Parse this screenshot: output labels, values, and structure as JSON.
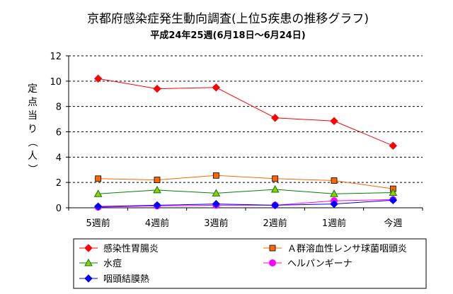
{
  "chart_data": {
    "type": "line",
    "title": "京都府感染症発生動向調査(上位5疾患の推移グラフ)",
    "subtitle": "平成24年25週(6月18日～6月24日)",
    "ylabel": "定点当り（人）",
    "xlabel": "",
    "categories": [
      "5週前",
      "4週前",
      "3週前",
      "2週前",
      "1週前",
      "今週"
    ],
    "ylim": [
      0,
      12
    ],
    "yticks": [
      "0",
      "2",
      "4",
      "6",
      "8",
      "10",
      "12"
    ],
    "grid": "horizontal-dashed",
    "legend_position": "bottom",
    "series": [
      {
        "name": "感染性胃腸炎",
        "color": "#ff0000",
        "marker": "diamond",
        "values": [
          10.2,
          9.4,
          9.5,
          7.1,
          6.85,
          4.9
        ]
      },
      {
        "name": "Ａ群溶血性レンサ球菌咽頭炎",
        "color": "#ff6600",
        "marker": "square",
        "values": [
          2.3,
          2.2,
          2.55,
          2.3,
          2.15,
          1.5
        ]
      },
      {
        "name": "水痘",
        "color": "#008000",
        "marker": "triangle",
        "values": [
          1.1,
          1.4,
          1.15,
          1.45,
          1.1,
          1.2
        ]
      },
      {
        "name": "ヘルパンギーナ",
        "color": "#ff00ff",
        "marker": "circle",
        "values": [
          0.05,
          0.15,
          0.2,
          0.2,
          0.55,
          0.65
        ]
      },
      {
        "name": "咽頭結膜熱",
        "color": "#0000ff",
        "marker": "diamond",
        "values": [
          0.1,
          0.2,
          0.3,
          0.2,
          0.3,
          0.6
        ]
      }
    ]
  }
}
